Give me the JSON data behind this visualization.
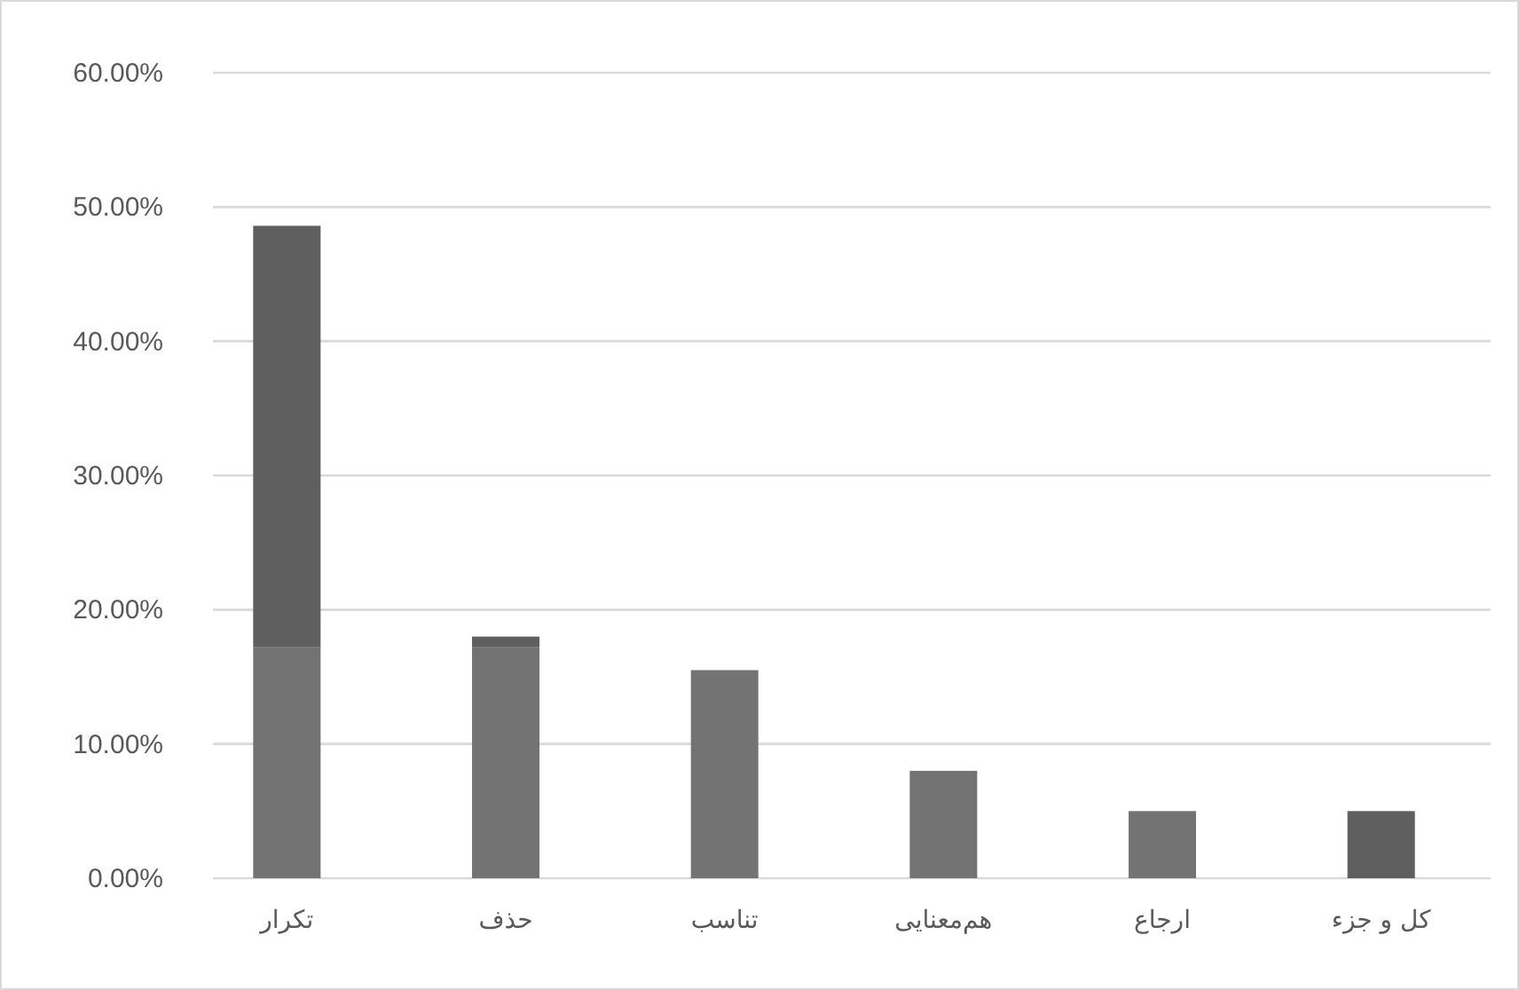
{
  "chart_data": {
    "type": "bar",
    "stacked": true,
    "categories": [
      "تکرار",
      "حذف",
      "تناسب",
      "هم‌معنایی",
      "ارجاع",
      "کل و جزء"
    ],
    "series": [
      {
        "color": "#737373",
        "values": [
          17.2,
          17.2,
          15.5,
          8,
          5,
          null
        ]
      },
      {
        "color": "#5f5f5f",
        "values": [
          31.4,
          0.8,
          null,
          null,
          null,
          5
        ]
      }
    ],
    "ylim": [
      0,
      60
    ],
    "yticks": [
      {
        "value": 0,
        "label": "0.00%"
      },
      {
        "value": 10,
        "label": "10.00%"
      },
      {
        "value": 20,
        "label": "20.00%"
      },
      {
        "value": 30,
        "label": "30.00%"
      },
      {
        "value": 40,
        "label": "40.00%"
      },
      {
        "value": 50,
        "label": "50.00%"
      },
      {
        "value": 60,
        "label": "60.00%"
      }
    ],
    "grid": "y"
  }
}
